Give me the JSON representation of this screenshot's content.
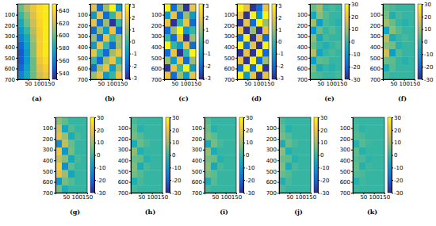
{
  "chart_data": [
    {
      "type": "heatmap",
      "label": "(a)",
      "xlim": [
        0,
        150
      ],
      "ylim": [
        0,
        700
      ],
      "xticks": [
        50,
        100,
        150
      ],
      "yticks": [
        100,
        200,
        300,
        400,
        500,
        600,
        700
      ],
      "zlim": [
        530,
        650
      ],
      "zticks": [
        540,
        560,
        580,
        600,
        620,
        640
      ],
      "z": [
        [
          600,
          615,
          630,
          640,
          645
        ],
        [
          590,
          605,
          625,
          640,
          645
        ],
        [
          580,
          600,
          620,
          638,
          645
        ],
        [
          570,
          590,
          615,
          635,
          645
        ],
        [
          560,
          580,
          610,
          635,
          645
        ],
        [
          550,
          575,
          605,
          635,
          645
        ],
        [
          545,
          570,
          605,
          635,
          645
        ],
        [
          545,
          570,
          600,
          630,
          640
        ],
        [
          550,
          575,
          600,
          625,
          635
        ],
        [
          560,
          580,
          600,
          620,
          630
        ]
      ]
    },
    {
      "type": "heatmap",
      "label": "(b)",
      "xlim": [
        0,
        150
      ],
      "ylim": [
        0,
        700
      ],
      "xticks": [
        50,
        100,
        150
      ],
      "yticks": [
        100,
        200,
        300,
        400,
        500,
        600,
        700
      ],
      "zlim": [
        -3.14,
        3.14
      ],
      "zticks": [
        -3,
        -2,
        -1,
        0,
        1,
        2,
        3
      ],
      "z": [
        [
          2,
          -2,
          1,
          3,
          -1
        ],
        [
          -1,
          2,
          -2,
          0,
          2
        ],
        [
          2,
          -2,
          1,
          -3,
          0
        ],
        [
          -2,
          1,
          -1,
          2,
          -2
        ],
        [
          1,
          -2,
          2,
          0,
          1
        ],
        [
          -1,
          2,
          0,
          -2,
          1
        ],
        [
          2,
          0,
          -2,
          1,
          2
        ],
        [
          0,
          -2,
          1,
          2,
          0
        ],
        [
          -2,
          1,
          2,
          -1,
          1
        ],
        [
          1,
          2,
          -1,
          0,
          2
        ]
      ]
    },
    {
      "type": "heatmap",
      "label": "(c)",
      "xlim": [
        0,
        150
      ],
      "ylim": [
        0,
        700
      ],
      "xticks": [
        50,
        100,
        150
      ],
      "yticks": [
        100,
        200,
        300,
        400,
        500,
        600,
        700
      ],
      "zlim": [
        -3.14,
        3.14
      ],
      "zticks": [
        -3,
        -2,
        -1,
        0,
        1,
        2,
        3
      ],
      "z": [
        [
          3,
          -2,
          1,
          -3,
          2
        ],
        [
          -1,
          2,
          -2,
          1,
          -1
        ],
        [
          2,
          -3,
          0,
          2,
          -2
        ],
        [
          -2,
          1,
          3,
          -1,
          0
        ],
        [
          0,
          -2,
          2,
          -3,
          1
        ],
        [
          3,
          0,
          -1,
          2,
          -2
        ],
        [
          -2,
          2,
          -3,
          0,
          3
        ],
        [
          1,
          -1,
          2,
          -2,
          1
        ],
        [
          -3,
          2,
          0,
          3,
          -1
        ],
        [
          2,
          -2,
          1,
          -1,
          2
        ]
      ]
    },
    {
      "type": "heatmap",
      "label": "(d)",
      "xlim": [
        0,
        150
      ],
      "ylim": [
        0,
        700
      ],
      "xticks": [
        50,
        100,
        150
      ],
      "yticks": [
        100,
        200,
        300,
        400,
        500,
        600,
        700
      ],
      "zlim": [
        -3.14,
        3.14
      ],
      "zticks": [
        -3,
        -2,
        -1,
        0,
        1,
        2,
        3
      ],
      "z": [
        [
          3,
          2,
          -3,
          -2,
          2
        ],
        [
          2,
          -3,
          3,
          -1,
          3
        ],
        [
          -3,
          2,
          -2,
          3,
          1
        ],
        [
          2,
          -3,
          1,
          -3,
          2
        ],
        [
          -2,
          3,
          -3,
          2,
          -2
        ],
        [
          3,
          -2,
          2,
          -3,
          3
        ],
        [
          -3,
          2,
          -3,
          3,
          -2
        ],
        [
          2,
          -3,
          3,
          -2,
          1
        ],
        [
          -2,
          3,
          -2,
          3,
          -3
        ],
        [
          3,
          -1,
          2,
          -3,
          2
        ]
      ]
    },
    {
      "type": "heatmap",
      "label": "(e)",
      "xlim": [
        0,
        150
      ],
      "ylim": [
        0,
        700
      ],
      "xticks": [
        50,
        100,
        150
      ],
      "yticks": [
        100,
        200,
        300,
        400,
        500,
        600,
        700
      ],
      "zlim": [
        -30,
        30
      ],
      "zticks": [
        -30,
        -20,
        -10,
        0,
        10,
        20,
        30
      ],
      "z": [
        [
          5,
          10,
          0,
          2,
          0
        ],
        [
          -5,
          8,
          3,
          0,
          0
        ],
        [
          10,
          -8,
          2,
          0,
          -2
        ],
        [
          -10,
          5,
          0,
          3,
          0
        ],
        [
          8,
          -5,
          2,
          0,
          0
        ],
        [
          5,
          0,
          -3,
          0,
          2
        ],
        [
          12,
          -6,
          0,
          2,
          0
        ],
        [
          -8,
          4,
          3,
          0,
          0
        ],
        [
          6,
          -4,
          0,
          -2,
          0
        ],
        [
          3,
          2,
          0,
          0,
          2
        ]
      ]
    },
    {
      "type": "heatmap",
      "label": "(f)",
      "xlim": [
        0,
        150
      ],
      "ylim": [
        0,
        700
      ],
      "xticks": [
        50,
        100,
        150
      ],
      "yticks": [
        100,
        200,
        300,
        400,
        500,
        600,
        700
      ],
      "zlim": [
        -30,
        30
      ],
      "zticks": [
        -30,
        -20,
        -10,
        0,
        10,
        20,
        30
      ],
      "z": [
        [
          4,
          2,
          0,
          0,
          0
        ],
        [
          6,
          -3,
          2,
          0,
          0
        ],
        [
          10,
          5,
          0,
          -2,
          0
        ],
        [
          -6,
          8,
          3,
          0,
          0
        ],
        [
          12,
          -4,
          0,
          2,
          0
        ],
        [
          8,
          6,
          -2,
          0,
          0
        ],
        [
          15,
          -8,
          3,
          0,
          0
        ],
        [
          5,
          4,
          0,
          -2,
          0
        ],
        [
          -4,
          3,
          0,
          0,
          0
        ],
        [
          2,
          0,
          0,
          0,
          0
        ]
      ]
    },
    {
      "type": "heatmap",
      "label": "(g)",
      "xlim": [
        0,
        150
      ],
      "ylim": [
        0,
        700
      ],
      "xticks": [
        50,
        100,
        150
      ],
      "yticks": [
        100,
        200,
        300,
        400,
        500,
        600,
        700
      ],
      "zlim": [
        -30,
        30
      ],
      "zticks": [
        -30,
        -20,
        -10,
        0,
        10,
        20,
        30
      ],
      "z": [
        [
          8,
          4,
          0,
          0,
          0
        ],
        [
          15,
          -6,
          3,
          0,
          0
        ],
        [
          18,
          10,
          -4,
          2,
          0
        ],
        [
          -12,
          14,
          5,
          0,
          0
        ],
        [
          20,
          -10,
          6,
          0,
          0
        ],
        [
          14,
          8,
          -5,
          2,
          0
        ],
        [
          22,
          -12,
          4,
          0,
          0
        ],
        [
          18,
          10,
          -6,
          0,
          0
        ],
        [
          -10,
          6,
          3,
          0,
          0
        ],
        [
          6,
          -4,
          0,
          0,
          0
        ]
      ]
    },
    {
      "type": "heatmap",
      "label": "(h)",
      "xlim": [
        0,
        150
      ],
      "ylim": [
        0,
        700
      ],
      "xticks": [
        50,
        100,
        150
      ],
      "yticks": [
        100,
        200,
        300,
        400,
        500,
        600,
        700
      ],
      "zlim": [
        -30,
        30
      ],
      "zticks": [
        -30,
        -20,
        -10,
        0,
        10,
        20,
        30
      ],
      "z": [
        [
          2,
          0,
          0,
          0,
          0
        ],
        [
          4,
          -2,
          0,
          0,
          0
        ],
        [
          6,
          3,
          0,
          0,
          0
        ],
        [
          -4,
          5,
          2,
          0,
          0
        ],
        [
          8,
          -3,
          0,
          0,
          0
        ],
        [
          5,
          4,
          -2,
          0,
          0
        ],
        [
          7,
          -4,
          2,
          0,
          0
        ],
        [
          6,
          3,
          0,
          0,
          0
        ],
        [
          -3,
          2,
          0,
          0,
          0
        ],
        [
          2,
          0,
          0,
          0,
          0
        ]
      ]
    },
    {
      "type": "heatmap",
      "label": "(i)",
      "xlim": [
        0,
        150
      ],
      "ylim": [
        0,
        700
      ],
      "xticks": [
        50,
        100,
        150
      ],
      "yticks": [
        100,
        200,
        300,
        400,
        500,
        600,
        700
      ],
      "zlim": [
        -30,
        30
      ],
      "zticks": [
        -30,
        -20,
        -10,
        0,
        10,
        20,
        30
      ],
      "z": [
        [
          3,
          0,
          0,
          0,
          0
        ],
        [
          5,
          -2,
          0,
          0,
          0
        ],
        [
          7,
          4,
          0,
          0,
          0
        ],
        [
          -5,
          6,
          2,
          0,
          0
        ],
        [
          9,
          -4,
          0,
          0,
          0
        ],
        [
          6,
          5,
          -2,
          0,
          0
        ],
        [
          8,
          -5,
          2,
          0,
          0
        ],
        [
          6,
          4,
          0,
          0,
          0
        ],
        [
          -4,
          3,
          0,
          0,
          0
        ],
        [
          2,
          0,
          0,
          0,
          0
        ]
      ]
    },
    {
      "type": "heatmap",
      "label": "(j)",
      "xlim": [
        0,
        150
      ],
      "ylim": [
        0,
        700
      ],
      "xticks": [
        50,
        100,
        150
      ],
      "yticks": [
        100,
        200,
        300,
        400,
        500,
        600,
        700
      ],
      "zlim": [
        -30,
        30
      ],
      "zticks": [
        -30,
        -20,
        -10,
        0,
        10,
        20,
        30
      ],
      "z": [
        [
          2,
          0,
          0,
          0,
          0
        ],
        [
          4,
          -2,
          0,
          0,
          0
        ],
        [
          6,
          3,
          0,
          0,
          0
        ],
        [
          -4,
          5,
          2,
          0,
          0
        ],
        [
          8,
          -3,
          0,
          0,
          0
        ],
        [
          5,
          4,
          -2,
          0,
          0
        ],
        [
          7,
          -4,
          2,
          0,
          0
        ],
        [
          5,
          3,
          0,
          0,
          0
        ],
        [
          -3,
          2,
          0,
          0,
          0
        ],
        [
          2,
          0,
          0,
          0,
          0
        ]
      ]
    },
    {
      "type": "heatmap",
      "label": "(k)",
      "xlim": [
        0,
        150
      ],
      "ylim": [
        0,
        700
      ],
      "xticks": [
        50,
        100,
        150
      ],
      "yticks": [
        100,
        200,
        300,
        400,
        500,
        600,
        700
      ],
      "zlim": [
        -30,
        30
      ],
      "zticks": [
        -30,
        -20,
        -10,
        0,
        10,
        20,
        30
      ],
      "z": [
        [
          1,
          0,
          0,
          0,
          0
        ],
        [
          2,
          -1,
          0,
          0,
          0
        ],
        [
          3,
          2,
          0,
          0,
          0
        ],
        [
          -2,
          3,
          1,
          0,
          0
        ],
        [
          4,
          -2,
          0,
          0,
          0
        ],
        [
          3,
          2,
          -1,
          0,
          0
        ],
        [
          4,
          -2,
          1,
          0,
          0
        ],
        [
          3,
          2,
          0,
          0,
          0
        ],
        [
          -2,
          1,
          0,
          0,
          0
        ],
        [
          1,
          0,
          0,
          0,
          0
        ]
      ]
    }
  ]
}
